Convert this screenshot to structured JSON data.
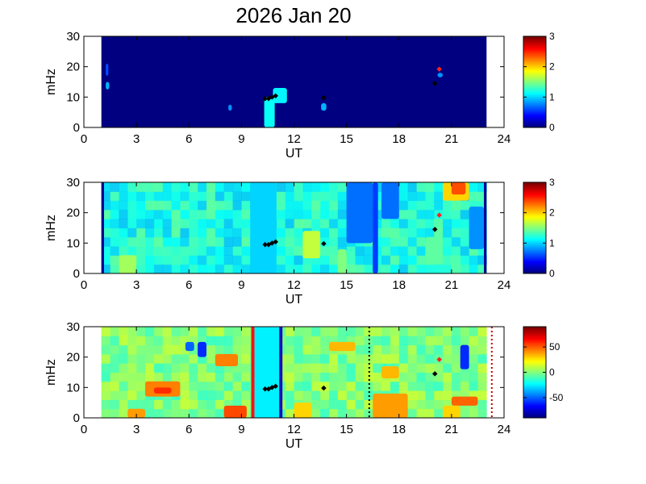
{
  "figure": {
    "title": "2026 Jan 20"
  },
  "chart_data": [
    {
      "type": "heatmap",
      "panel": "top",
      "xlabel": "UT",
      "ylabel": "mHz",
      "xlim": [
        0,
        24
      ],
      "ylim": [
        0,
        30
      ],
      "xticks": [
        "0",
        "3",
        "6",
        "9",
        "12",
        "15",
        "18",
        "21",
        "24"
      ],
      "yticks": [
        "0",
        "10",
        "20",
        "30"
      ],
      "colorbar": {
        "range": [
          0,
          3
        ],
        "ticks": [
          "0",
          "1",
          "2",
          "3"
        ],
        "colormap": "jet"
      },
      "data_extent_ut": [
        1.0,
        23.0
      ],
      "background_level": 0.0,
      "features": [
        {
          "ut": [
            10.3,
            10.9
          ],
          "mhz": [
            0,
            10
          ],
          "level": 1.15
        },
        {
          "ut": [
            10.8,
            11.6
          ],
          "mhz": [
            8,
            13
          ],
          "level": 1.1
        },
        {
          "ut": [
            8.25,
            8.45
          ],
          "mhz": [
            5.5,
            7.5
          ],
          "level": 0.8
        },
        {
          "ut": [
            1.25,
            1.45
          ],
          "mhz": [
            12.5,
            15
          ],
          "level": 0.9
        },
        {
          "ut": [
            1.25,
            1.4
          ],
          "mhz": [
            17,
            21
          ],
          "level": 0.6
        },
        {
          "ut": [
            13.55,
            13.85
          ],
          "mhz": [
            5.5,
            8
          ],
          "level": 0.9
        },
        {
          "ut": [
            20.2,
            20.5
          ],
          "mhz": [
            16.5,
            18
          ],
          "level": 0.8
        }
      ],
      "markers": [
        {
          "ut": 10.35,
          "mhz": 9.5,
          "color": "#000000"
        },
        {
          "ut": 10.55,
          "mhz": 9.5,
          "color": "#000000"
        },
        {
          "ut": 10.75,
          "mhz": 10.0,
          "color": "#000000"
        },
        {
          "ut": 10.95,
          "mhz": 10.4,
          "color": "#000000"
        },
        {
          "ut": 13.7,
          "mhz": 9.8,
          "color": "#000000"
        },
        {
          "ut": 20.05,
          "mhz": 14.5,
          "color": "#000000"
        },
        {
          "ut": 20.3,
          "mhz": 19.2,
          "color": "#ff2020"
        }
      ]
    },
    {
      "type": "heatmap",
      "panel": "middle",
      "xlabel": "UT",
      "ylabel": "mHz",
      "xlim": [
        0,
        24
      ],
      "ylim": [
        0,
        30
      ],
      "xticks": [
        "0",
        "3",
        "6",
        "9",
        "12",
        "15",
        "18",
        "21",
        "24"
      ],
      "yticks": [
        "0",
        "10",
        "20",
        "30"
      ],
      "colorbar": {
        "range": [
          0,
          3
        ],
        "ticks": [
          "0",
          "1",
          "2",
          "3"
        ],
        "colormap": "jet"
      },
      "data_extent_ut": [
        1.0,
        23.0
      ],
      "background_level": 1.2,
      "edge_columns": [
        {
          "ut": [
            1.0,
            1.15
          ],
          "level": 0.05
        },
        {
          "ut": [
            22.85,
            23.0
          ],
          "level": 0.05
        }
      ],
      "features": [
        {
          "ut": [
            15.0,
            16.5
          ],
          "mhz": [
            10,
            30
          ],
          "level": 0.7
        },
        {
          "ut": [
            16.5,
            16.8
          ],
          "mhz": [
            0,
            30
          ],
          "level": 0.55
        },
        {
          "ut": [
            17.0,
            18.0
          ],
          "mhz": [
            18,
            30
          ],
          "level": 0.7
        },
        {
          "ut": [
            20.5,
            22.0
          ],
          "mhz": [
            24,
            30
          ],
          "level": 2.0
        },
        {
          "ut": [
            21.0,
            21.8
          ],
          "mhz": [
            26,
            30
          ],
          "level": 2.4
        },
        {
          "ut": [
            12.5,
            13.5
          ],
          "mhz": [
            5,
            14
          ],
          "level": 1.7
        },
        {
          "ut": [
            2.0,
            3.0
          ],
          "mhz": [
            0,
            6
          ],
          "level": 1.6
        },
        {
          "ut": [
            14.5,
            15.0
          ],
          "mhz": [
            0,
            8
          ],
          "level": 1.5
        },
        {
          "ut": [
            9.5,
            11.0
          ],
          "mhz": [
            0,
            30
          ],
          "level": 1.0
        },
        {
          "ut": [
            19.5,
            20.5
          ],
          "mhz": [
            3,
            12
          ],
          "level": 1.4
        },
        {
          "ut": [
            22.0,
            22.85
          ],
          "mhz": [
            8,
            22
          ],
          "level": 0.8
        }
      ],
      "markers": [
        {
          "ut": 10.35,
          "mhz": 9.5,
          "color": "#000000"
        },
        {
          "ut": 10.55,
          "mhz": 9.5,
          "color": "#000000"
        },
        {
          "ut": 10.75,
          "mhz": 10.0,
          "color": "#000000"
        },
        {
          "ut": 10.95,
          "mhz": 10.4,
          "color": "#000000"
        },
        {
          "ut": 13.7,
          "mhz": 9.8,
          "color": "#000000"
        },
        {
          "ut": 20.05,
          "mhz": 14.5,
          "color": "#000000"
        },
        {
          "ut": 20.3,
          "mhz": 19.2,
          "color": "#ff2020"
        }
      ]
    },
    {
      "type": "heatmap",
      "panel": "bottom",
      "xlabel": "UT",
      "ylabel": "mHz",
      "xlim": [
        0,
        24
      ],
      "ylim": [
        0,
        30
      ],
      "xticks": [
        "0",
        "3",
        "6",
        "9",
        "12",
        "15",
        "18",
        "21",
        "24"
      ],
      "yticks": [
        "0",
        "10",
        "20",
        "30"
      ],
      "colorbar": {
        "range": [
          -90,
          90
        ],
        "ticks": [
          "-50",
          "0",
          "50"
        ],
        "colormap": "jet"
      },
      "data_extent_ut": [
        1.0,
        23.0
      ],
      "background_level": 0,
      "features": [
        {
          "ut": [
            3.5,
            5.5
          ],
          "mhz": [
            7,
            12
          ],
          "level": 45
        },
        {
          "ut": [
            4.0,
            5.0
          ],
          "mhz": [
            8,
            10
          ],
          "level": 60
        },
        {
          "ut": [
            7.5,
            8.8
          ],
          "mhz": [
            17,
            21
          ],
          "level": 45
        },
        {
          "ut": [
            8.0,
            9.3
          ],
          "mhz": [
            0,
            4
          ],
          "level": 55
        },
        {
          "ut": [
            2.5,
            3.5
          ],
          "mhz": [
            0,
            3
          ],
          "level": 40
        },
        {
          "ut": [
            6.5,
            7.0
          ],
          "mhz": [
            20,
            25
          ],
          "level": -60
        },
        {
          "ut": [
            5.8,
            6.3
          ],
          "mhz": [
            22,
            25
          ],
          "level": -50
        },
        {
          "ut": [
            9.7,
            11.2
          ],
          "mhz": [
            0,
            30
          ],
          "level": -25
        },
        {
          "ut": [
            16.5,
            18.5
          ],
          "mhz": [
            0,
            8
          ],
          "level": 40
        },
        {
          "ut": [
            17.0,
            18.0
          ],
          "mhz": [
            13,
            17
          ],
          "level": 35
        },
        {
          "ut": [
            21.0,
            22.5
          ],
          "mhz": [
            4,
            7
          ],
          "level": 50
        },
        {
          "ut": [
            21.5,
            22.0
          ],
          "mhz": [
            16,
            24
          ],
          "level": -60
        },
        {
          "ut": [
            20.5,
            21.5
          ],
          "mhz": [
            0,
            4
          ],
          "level": 30
        },
        {
          "ut": [
            14.0,
            15.5
          ],
          "mhz": [
            22,
            25
          ],
          "level": 35
        },
        {
          "ut": [
            12.0,
            13.0
          ],
          "mhz": [
            0,
            5
          ],
          "level": 30
        }
      ],
      "vertical_lines": [
        {
          "ut": 9.65,
          "color": "#ff1010",
          "style": "solid"
        },
        {
          "ut": 11.25,
          "color": "#1010c0",
          "style": "solid"
        },
        {
          "ut": 16.3,
          "color": "#000000",
          "style": "dotted"
        },
        {
          "ut": 23.3,
          "color": "#c00000",
          "style": "dotted"
        }
      ],
      "markers": [
        {
          "ut": 10.35,
          "mhz": 9.5,
          "color": "#000000"
        },
        {
          "ut": 10.55,
          "mhz": 9.5,
          "color": "#000000"
        },
        {
          "ut": 10.75,
          "mhz": 10.0,
          "color": "#000000"
        },
        {
          "ut": 10.95,
          "mhz": 10.4,
          "color": "#000000"
        },
        {
          "ut": 13.7,
          "mhz": 9.8,
          "color": "#000000"
        },
        {
          "ut": 20.05,
          "mhz": 14.5,
          "color": "#000000"
        },
        {
          "ut": 20.3,
          "mhz": 19.2,
          "color": "#ff2020"
        }
      ]
    }
  ]
}
